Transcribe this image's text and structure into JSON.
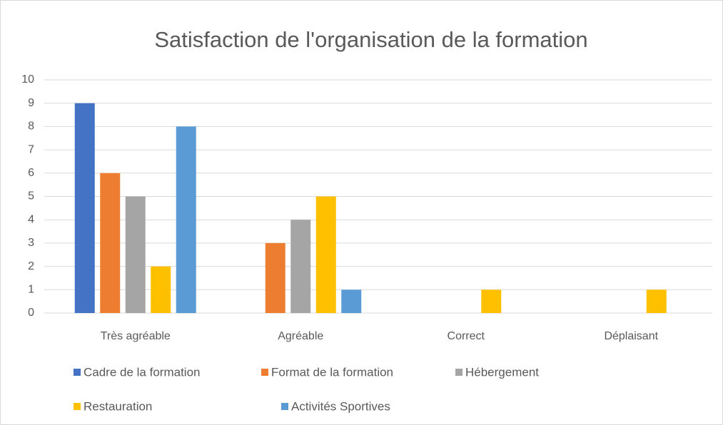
{
  "chart_data": {
    "type": "bar",
    "title": "Satisfaction de l'organisation de la formation",
    "categories": [
      "Très agréable",
      "Agréable",
      "Correct",
      "Déplaisant"
    ],
    "series": [
      {
        "name": "Cadre de la formation",
        "color": "#4472c4",
        "values": [
          9,
          0,
          0,
          0
        ]
      },
      {
        "name": "Format de la formation",
        "color": "#ed7d31",
        "values": [
          6,
          3,
          0,
          0
        ]
      },
      {
        "name": "Hébergement",
        "color": "#a5a5a5",
        "values": [
          5,
          4,
          0,
          0
        ]
      },
      {
        "name": "Restauration",
        "color": "#ffc000",
        "values": [
          2,
          5,
          1,
          1
        ]
      },
      {
        "name": "Activités Sportives",
        "color": "#5b9bd5",
        "values": [
          8,
          1,
          0,
          0
        ]
      }
    ],
    "ylim": [
      0,
      10
    ],
    "yticks": [
      0,
      1,
      2,
      3,
      4,
      5,
      6,
      7,
      8,
      9,
      10
    ],
    "grid": true,
    "legend": "bottom"
  }
}
